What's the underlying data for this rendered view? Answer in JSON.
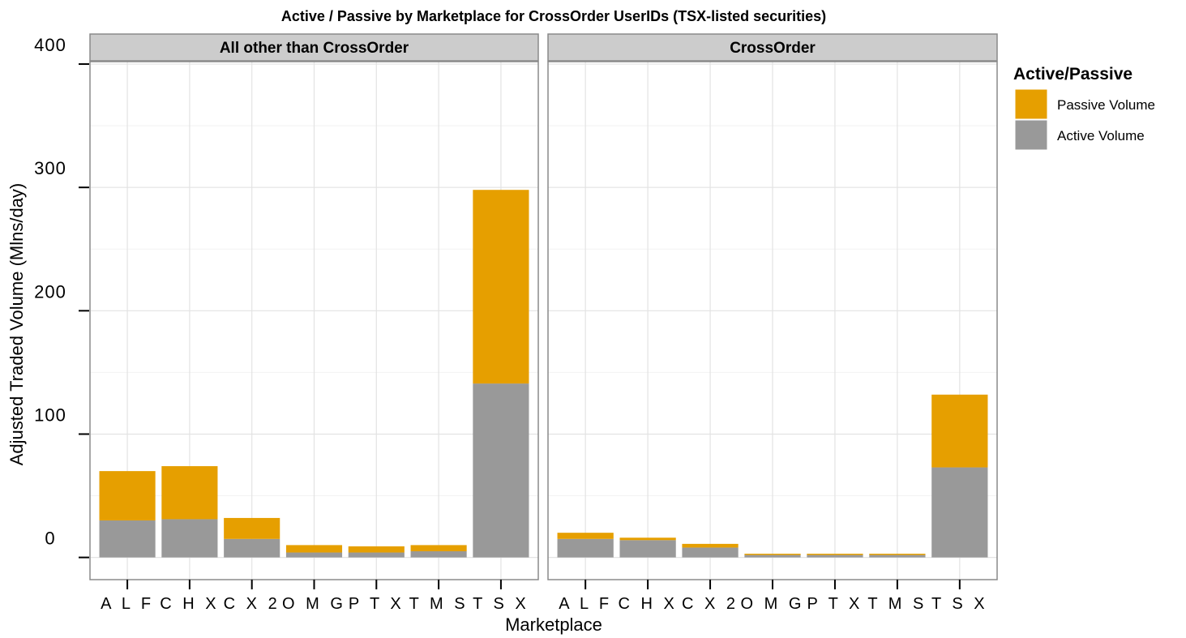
{
  "chart_data": {
    "type": "bar",
    "stacked": true,
    "title": "Active / Passive by Marketplace for CrossOrder UserIDs  (TSX-listed securities)",
    "xlabel": "Marketplace",
    "ylabel": "Adjusted Traded Volume (Mlns/day)",
    "ylim": [
      -18,
      402
    ],
    "yticks": [
      "0",
      "100",
      "200",
      "300",
      "400"
    ],
    "categories": [
      "ALF",
      "CHX",
      "CX2",
      "OMG",
      "PTX",
      "TMS",
      "TSX"
    ],
    "legend": {
      "title": "Active/Passive",
      "position": "right",
      "items": [
        {
          "label": "Passive Volume",
          "color": "#E69F00"
        },
        {
          "label": "Active Volume",
          "color": "#999999"
        }
      ]
    },
    "grid": true,
    "facets": [
      {
        "label": "All other than CrossOrder",
        "series": [
          {
            "name": "Active Volume",
            "color": "#999999",
            "values": [
              30,
              31,
              15,
              4,
              4,
              5,
              141
            ]
          },
          {
            "name": "Passive Volume",
            "color": "#E69F00",
            "values": [
              40,
              43,
              17,
              6,
              5,
              5,
              157
            ]
          }
        ]
      },
      {
        "label": "CrossOrder",
        "series": [
          {
            "name": "Active Volume",
            "color": "#999999",
            "values": [
              15,
              14,
              8,
              2,
              2,
              2,
              73
            ]
          },
          {
            "name": "Passive Volume",
            "color": "#E69F00",
            "values": [
              5,
              2,
              3,
              1,
              1,
              1,
              59
            ]
          }
        ]
      }
    ]
  }
}
